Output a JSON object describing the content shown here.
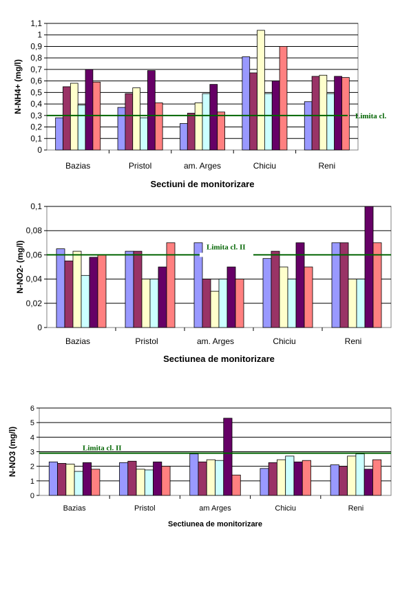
{
  "colors": [
    "#9999FF",
    "#993366",
    "#FFFFCC",
    "#CCFFFF",
    "#660066",
    "#FF8080"
  ],
  "limit_color": "#006400",
  "chart_data": [
    {
      "type": "bar",
      "categories": [
        "Bazias",
        "Pristol",
        "am. Arges",
        "Chiciu",
        "Reni"
      ],
      "series": [
        {
          "values": [
            0.28,
            0.37,
            0.23,
            0.81,
            0.42
          ]
        },
        {
          "values": [
            0.55,
            0.49,
            0.32,
            0.67,
            0.64
          ]
        },
        {
          "values": [
            0.58,
            0.54,
            0.41,
            1.04,
            0.65
          ]
        },
        {
          "values": [
            0.39,
            0.28,
            0.49,
            0.49,
            0.49
          ]
        },
        {
          "values": [
            0.7,
            0.69,
            0.57,
            0.6,
            0.64
          ]
        },
        {
          "values": [
            0.59,
            0.41,
            0.33,
            0.9,
            0.63
          ]
        }
      ],
      "ylim": [
        0,
        1.1
      ],
      "yticks": [
        0,
        0.1,
        0.2,
        0.3,
        0.4,
        0.5,
        0.6,
        0.7,
        0.8,
        0.9,
        1,
        1.1
      ],
      "ytick_labels": [
        "0",
        "0,1",
        "0,2",
        "0,3",
        "0,4",
        "0,5",
        "0,6",
        "0,7",
        "0,8",
        "0,9",
        "1",
        "1,1"
      ],
      "limit_value": 0.3,
      "limit_label": "Limita cl.",
      "xlabel": "Sectiuni de monitorizare",
      "ylabel": "N-NH4+ (mg/l)",
      "grid": true
    },
    {
      "type": "bar",
      "categories": [
        "Bazias",
        "Pristol",
        "am. Arges",
        "Chiciu",
        "Reni"
      ],
      "series": [
        {
          "values": [
            0.065,
            0.063,
            0.07,
            0.057,
            0.07
          ]
        },
        {
          "values": [
            0.055,
            0.063,
            0.04,
            0.063,
            0.07
          ]
        },
        {
          "values": [
            0.063,
            0.04,
            0.03,
            0.05,
            0.04
          ]
        },
        {
          "values": [
            0.043,
            0.04,
            0.04,
            0.04,
            0.04
          ]
        },
        {
          "values": [
            0.058,
            0.05,
            0.05,
            0.07,
            0.1
          ]
        },
        {
          "values": [
            0.06,
            0.07,
            0.04,
            0.05,
            0.07
          ]
        }
      ],
      "ylim": [
        0,
        0.1
      ],
      "yticks": [
        0,
        0.02,
        0.04,
        0.06,
        0.08,
        0.1
      ],
      "ytick_labels": [
        "0",
        "0,02",
        "0,04",
        "0,06",
        "0,08",
        "0,1"
      ],
      "limit_value": 0.06,
      "limit_label": "Limita cl. II",
      "xlabel": "Sectiunea de monitorizare",
      "ylabel": "N-NO2- (mg/l)",
      "grid": true
    },
    {
      "type": "bar",
      "categories": [
        "Bazias",
        "Pristol",
        "am Arges",
        "Chiciu",
        "Reni"
      ],
      "series": [
        {
          "values": [
            2.3,
            2.25,
            2.85,
            1.85,
            2.1
          ]
        },
        {
          "values": [
            2.2,
            2.35,
            2.3,
            2.25,
            2.0
          ]
        },
        {
          "values": [
            2.15,
            1.8,
            2.45,
            2.45,
            2.7
          ]
        },
        {
          "values": [
            1.65,
            1.75,
            2.4,
            2.7,
            2.85
          ]
        },
        {
          "values": [
            2.25,
            2.3,
            5.3,
            2.3,
            1.8
          ]
        },
        {
          "values": [
            1.8,
            2.0,
            1.4,
            2.4,
            2.45
          ]
        }
      ],
      "ylim": [
        0,
        6
      ],
      "yticks": [
        0,
        1,
        2,
        3,
        4,
        5,
        6
      ],
      "ytick_labels": [
        "0",
        "1",
        "2",
        "3",
        "4",
        "5",
        "6"
      ],
      "limit_value": 2.9,
      "limit_label": "Limita cl. II",
      "xlabel": "Sectiunea de monitorizare",
      "ylabel": "N-NO3 (mg/l)",
      "grid": true
    }
  ]
}
